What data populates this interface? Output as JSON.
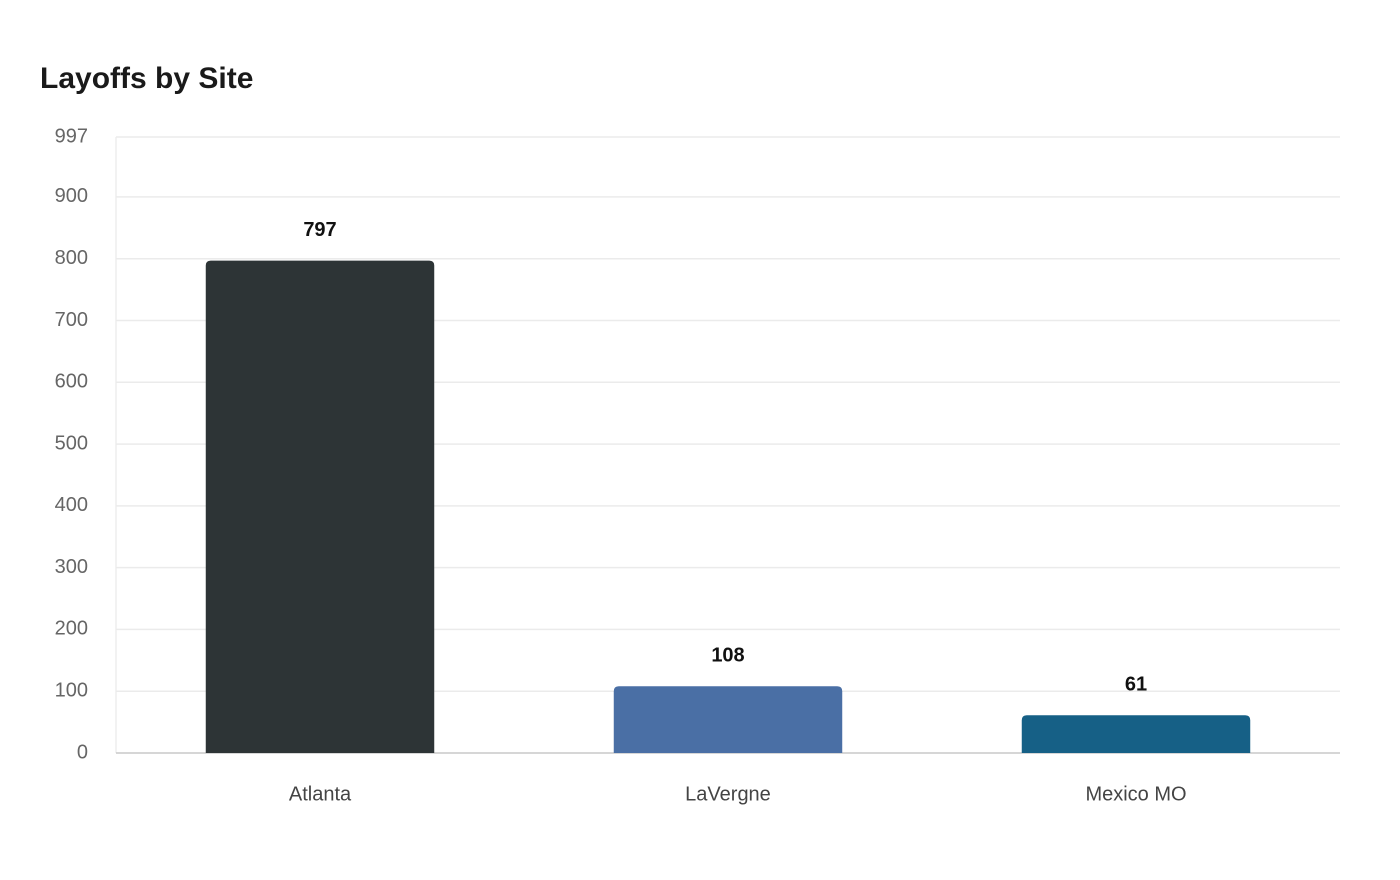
{
  "chart_data": {
    "type": "bar",
    "title": "Layoffs by Site",
    "categories": [
      "Atlanta",
      "LaVergne",
      "Mexico MO"
    ],
    "values": [
      797,
      108,
      61
    ],
    "colors": [
      "#2d3436",
      "#4a6fa5",
      "#166086"
    ],
    "ylim": [
      0,
      997
    ],
    "yticks": [
      0,
      100,
      200,
      300,
      400,
      500,
      600,
      700,
      800,
      900,
      997
    ],
    "grid": true
  }
}
